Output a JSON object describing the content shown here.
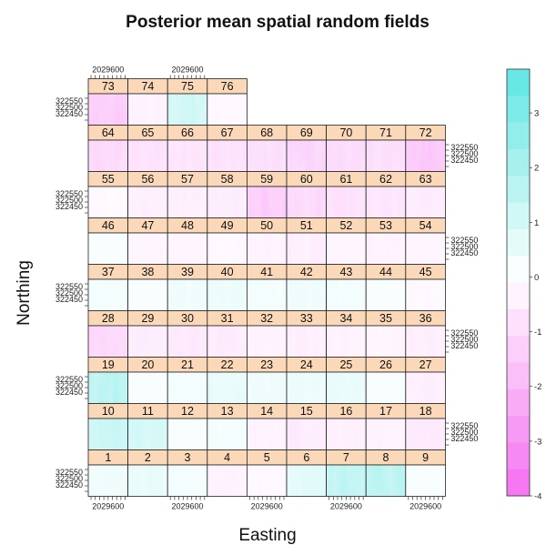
{
  "chart_data": {
    "type": "heatmap",
    "title": "Posterior mean spatial random fields",
    "xlabel": "Easting",
    "ylabel": "Northing",
    "x_tick_labels": [
      "2029600"
    ],
    "y_tick_labels": [
      "322550",
      "322500",
      "322450"
    ],
    "colorbar": {
      "ticks": [
        3,
        2,
        1,
        0,
        -1,
        -2,
        -3,
        -4
      ],
      "ticks_display": [
        "3",
        "2",
        "1",
        "0",
        "-1",
        "-2",
        "-3",
        "-4"
      ],
      "range": [
        -4,
        3.8
      ],
      "low_color": "#f46ef0",
      "mid_color": "#ffffff",
      "high_color": "#5ee6e2"
    },
    "strip_color": "#fbd8b8",
    "panels": [
      {
        "id": "1",
        "mean": 0.4
      },
      {
        "id": "2",
        "mean": 0.6
      },
      {
        "id": "3",
        "mean": 0.3
      },
      {
        "id": "4",
        "mean": -0.4
      },
      {
        "id": "5",
        "mean": -0.2
      },
      {
        "id": "6",
        "mean": 0.7
      },
      {
        "id": "7",
        "mean": 1.6
      },
      {
        "id": "8",
        "mean": 1.8
      },
      {
        "id": "9",
        "mean": 0.2
      },
      {
        "id": "10",
        "mean": 1.4
      },
      {
        "id": "11",
        "mean": 1.1
      },
      {
        "id": "12",
        "mean": 0.2
      },
      {
        "id": "13",
        "mean": 0.3
      },
      {
        "id": "14",
        "mean": -0.4
      },
      {
        "id": "15",
        "mean": -0.6
      },
      {
        "id": "16",
        "mean": -0.5
      },
      {
        "id": "17",
        "mean": -0.4
      },
      {
        "id": "18",
        "mean": -0.7
      },
      {
        "id": "19",
        "mean": 1.8
      },
      {
        "id": "20",
        "mean": 0.2
      },
      {
        "id": "21",
        "mean": 0.3
      },
      {
        "id": "22",
        "mean": 0.6
      },
      {
        "id": "23",
        "mean": 0.4
      },
      {
        "id": "24",
        "mean": 0.5
      },
      {
        "id": "25",
        "mean": 0.6
      },
      {
        "id": "26",
        "mean": 0.2
      },
      {
        "id": "27",
        "mean": -0.5
      },
      {
        "id": "28",
        "mean": -1.2
      },
      {
        "id": "29",
        "mean": -0.6
      },
      {
        "id": "30",
        "mean": -0.7
      },
      {
        "id": "31",
        "mean": -0.6
      },
      {
        "id": "32",
        "mean": -0.4
      },
      {
        "id": "33",
        "mean": -0.5
      },
      {
        "id": "34",
        "mean": -0.4
      },
      {
        "id": "35",
        "mean": -0.3
      },
      {
        "id": "36",
        "mean": -0.5
      },
      {
        "id": "37",
        "mean": 0.3
      },
      {
        "id": "38",
        "mean": 0.2
      },
      {
        "id": "39",
        "mean": 0.4
      },
      {
        "id": "40",
        "mean": 0.5
      },
      {
        "id": "41",
        "mean": 0.3
      },
      {
        "id": "42",
        "mean": 0.4
      },
      {
        "id": "43",
        "mean": 0.3
      },
      {
        "id": "44",
        "mean": 0.2
      },
      {
        "id": "45",
        "mean": -0.2
      },
      {
        "id": "46",
        "mean": 0.2
      },
      {
        "id": "47",
        "mean": -0.3
      },
      {
        "id": "48",
        "mean": -0.3
      },
      {
        "id": "49",
        "mean": -0.2
      },
      {
        "id": "50",
        "mean": -0.4
      },
      {
        "id": "51",
        "mean": -0.5
      },
      {
        "id": "52",
        "mean": -0.3
      },
      {
        "id": "53",
        "mean": -0.4
      },
      {
        "id": "54",
        "mean": -0.3
      },
      {
        "id": "55",
        "mean": -0.2
      },
      {
        "id": "56",
        "mean": -0.5
      },
      {
        "id": "57",
        "mean": -0.5
      },
      {
        "id": "58",
        "mean": -0.6
      },
      {
        "id": "59",
        "mean": -1.6
      },
      {
        "id": "60",
        "mean": -1.2
      },
      {
        "id": "61",
        "mean": -0.9
      },
      {
        "id": "62",
        "mean": -0.8
      },
      {
        "id": "63",
        "mean": -0.6
      },
      {
        "id": "64",
        "mean": -1.2
      },
      {
        "id": "65",
        "mean": -0.9
      },
      {
        "id": "66",
        "mean": -0.8
      },
      {
        "id": "67",
        "mean": -0.9
      },
      {
        "id": "68",
        "mean": -1.0
      },
      {
        "id": "69",
        "mean": -1.3
      },
      {
        "id": "70",
        "mean": -1.1
      },
      {
        "id": "71",
        "mean": -1.0
      },
      {
        "id": "72",
        "mean": -1.7
      },
      {
        "id": "73",
        "mean": -1.5
      },
      {
        "id": "74",
        "mean": -0.4
      },
      {
        "id": "75",
        "mean": 1.3
      },
      {
        "id": "76",
        "mean": -0.2
      }
    ]
  }
}
